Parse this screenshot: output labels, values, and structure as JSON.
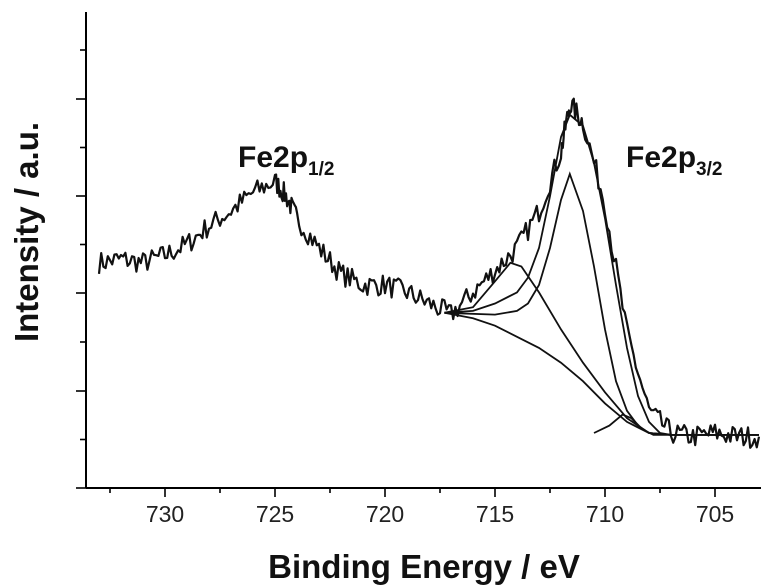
{
  "chart_data": {
    "type": "line",
    "xlabel": "Binding Energy / eV",
    "ylabel": "Intensity / a.u.",
    "xlim": [
      733,
      703
    ],
    "x_reversed": true,
    "ylim": [
      0,
      1
    ],
    "grid": false,
    "x_ticks": [
      730,
      725,
      720,
      715,
      710,
      705
    ],
    "x_tick_labels": [
      "730",
      "725",
      "720",
      "715",
      "710",
      "705"
    ],
    "y_ticks_labeled": false,
    "annotations": [
      {
        "text": "Fe2p",
        "sub": "1/2",
        "x": 725.0
      },
      {
        "text": "Fe2p",
        "sub": "3/2",
        "x": 708.5
      }
    ],
    "series": [
      {
        "kind": "measured",
        "points": [
          [
            733.0,
            0.56
          ],
          [
            732.0,
            0.57
          ],
          [
            731.0,
            0.56
          ],
          [
            730.0,
            0.58
          ],
          [
            729.0,
            0.61
          ],
          [
            728.0,
            0.66
          ],
          [
            727.0,
            0.7
          ],
          [
            726.0,
            0.75
          ],
          [
            725.0,
            0.78
          ],
          [
            724.5,
            0.74
          ],
          [
            724.0,
            0.68
          ],
          [
            723.0,
            0.6
          ],
          [
            722.0,
            0.53
          ],
          [
            721.0,
            0.5
          ],
          [
            720.0,
            0.5
          ],
          [
            719.0,
            0.48
          ],
          [
            718.0,
            0.45
          ],
          [
            717.0,
            0.42
          ],
          [
            716.0,
            0.48
          ],
          [
            715.0,
            0.54
          ],
          [
            714.0,
            0.6
          ],
          [
            713.0,
            0.7
          ],
          [
            712.0,
            0.86
          ],
          [
            711.6,
            0.99
          ],
          [
            711.0,
            0.94
          ],
          [
            710.0,
            0.72
          ],
          [
            709.0,
            0.37
          ],
          [
            708.0,
            0.16
          ],
          [
            707.0,
            0.1
          ],
          [
            706.0,
            0.09
          ],
          [
            705.0,
            0.1
          ],
          [
            704.0,
            0.09
          ],
          [
            703.0,
            0.09
          ]
        ]
      },
      {
        "kind": "fit",
        "points": [
          [
            717.3,
            0.425
          ],
          [
            716.0,
            0.43
          ],
          [
            715.0,
            0.45
          ],
          [
            714.0,
            0.48
          ],
          [
            713.5,
            0.52
          ],
          [
            713.0,
            0.6
          ],
          [
            712.5,
            0.74
          ],
          [
            712.0,
            0.9
          ],
          [
            711.6,
            0.96
          ],
          [
            711.0,
            0.93
          ],
          [
            710.5,
            0.83
          ],
          [
            710.0,
            0.68
          ],
          [
            709.5,
            0.5
          ],
          [
            709.0,
            0.33
          ],
          [
            708.5,
            0.2
          ],
          [
            708.0,
            0.13
          ],
          [
            707.5,
            0.1
          ],
          [
            707.0,
            0.095
          ],
          [
            704.0,
            0.095
          ],
          [
            703.0,
            0.095
          ]
        ]
      },
      {
        "kind": "fit",
        "points": [
          [
            717.3,
            0.425
          ],
          [
            716.0,
            0.44
          ],
          [
            715.0,
            0.51
          ],
          [
            714.3,
            0.56
          ],
          [
            713.8,
            0.55
          ],
          [
            713.0,
            0.48
          ],
          [
            712.0,
            0.38
          ],
          [
            711.0,
            0.29
          ],
          [
            710.0,
            0.21
          ],
          [
            709.0,
            0.14
          ],
          [
            708.0,
            0.1
          ],
          [
            707.0,
            0.095
          ],
          [
            704.0,
            0.095
          ],
          [
            703.0,
            0.095
          ]
        ]
      },
      {
        "kind": "fit",
        "points": [
          [
            717.3,
            0.425
          ],
          [
            715.0,
            0.42
          ],
          [
            714.0,
            0.43
          ],
          [
            713.5,
            0.45
          ],
          [
            713.0,
            0.5
          ],
          [
            712.5,
            0.6
          ],
          [
            712.0,
            0.73
          ],
          [
            711.6,
            0.8
          ],
          [
            711.0,
            0.7
          ],
          [
            710.5,
            0.55
          ],
          [
            710.0,
            0.38
          ],
          [
            709.5,
            0.24
          ],
          [
            709.0,
            0.16
          ],
          [
            708.5,
            0.12
          ],
          [
            708.0,
            0.1
          ],
          [
            707.0,
            0.095
          ],
          [
            704.0,
            0.095
          ],
          [
            703.0,
            0.095
          ]
        ]
      },
      {
        "kind": "background",
        "points": [
          [
            717.3,
            0.425
          ],
          [
            716.0,
            0.41
          ],
          [
            715.0,
            0.39
          ],
          [
            714.0,
            0.36
          ],
          [
            713.0,
            0.33
          ],
          [
            712.0,
            0.29
          ],
          [
            711.0,
            0.24
          ],
          [
            710.0,
            0.18
          ],
          [
            709.0,
            0.13
          ],
          [
            708.0,
            0.1
          ],
          [
            707.0,
            0.095
          ],
          [
            704.0,
            0.095
          ],
          [
            703.0,
            0.095
          ]
        ]
      },
      {
        "kind": "fit",
        "points": [
          [
            710.5,
            0.1
          ],
          [
            709.8,
            0.12
          ],
          [
            709.2,
            0.15
          ],
          [
            708.8,
            0.14
          ],
          [
            708.3,
            0.11
          ],
          [
            707.8,
            0.095
          ],
          [
            707.0,
            0.095
          ]
        ]
      }
    ]
  }
}
